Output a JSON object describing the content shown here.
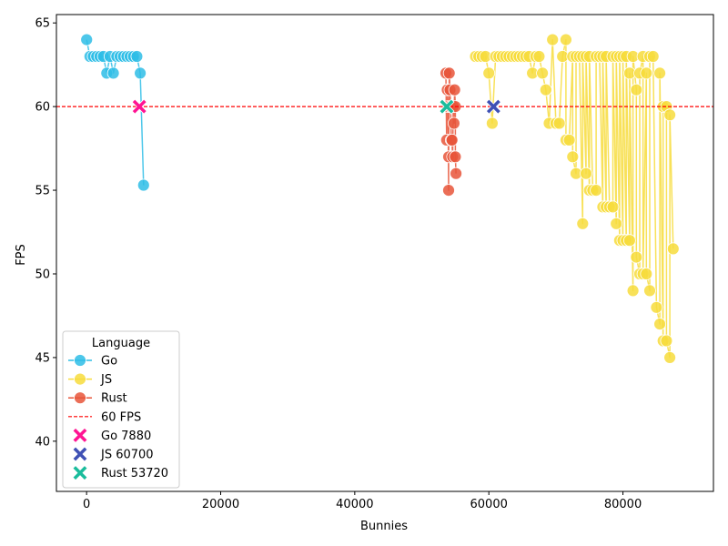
{
  "chart_data": {
    "type": "scatter",
    "xlabel": "Bunnies",
    "ylabel": "FPS",
    "xlim": [
      -4500,
      93500
    ],
    "ylim": [
      37,
      65.5
    ],
    "x_ticks": [
      0,
      20000,
      40000,
      60000,
      80000
    ],
    "y_ticks": [
      40,
      45,
      50,
      55,
      60,
      65
    ],
    "grid": false,
    "legend_title": "Language",
    "legend_position": "lower-left",
    "reference_line": {
      "y": 60,
      "label": "60 FPS",
      "color": "#ff0000"
    },
    "series": [
      {
        "name": "Go",
        "color": "#2ebde6",
        "points": [
          [
            0,
            64
          ],
          [
            500,
            63
          ],
          [
            1000,
            63
          ],
          [
            1500,
            63
          ],
          [
            2000,
            63
          ],
          [
            2500,
            63
          ],
          [
            3000,
            62
          ],
          [
            3500,
            63
          ],
          [
            4000,
            62
          ],
          [
            4500,
            63
          ],
          [
            5000,
            63
          ],
          [
            5500,
            63
          ],
          [
            6000,
            63
          ],
          [
            6500,
            63
          ],
          [
            7000,
            63
          ],
          [
            7500,
            63
          ],
          [
            8000,
            62
          ],
          [
            8500,
            55.3
          ]
        ]
      },
      {
        "name": "JS",
        "color": "#f7dc3c",
        "points": [
          [
            58000,
            63
          ],
          [
            58500,
            63
          ],
          [
            59000,
            63
          ],
          [
            59500,
            63
          ],
          [
            60000,
            62
          ],
          [
            60500,
            59
          ],
          [
            61000,
            63
          ],
          [
            61500,
            63
          ],
          [
            62000,
            63
          ],
          [
            62500,
            63
          ],
          [
            63000,
            63
          ],
          [
            63500,
            63
          ],
          [
            64000,
            63
          ],
          [
            64500,
            63
          ],
          [
            65000,
            63
          ],
          [
            65500,
            63
          ],
          [
            66000,
            63
          ],
          [
            66500,
            62
          ],
          [
            67000,
            63
          ],
          [
            67500,
            63
          ],
          [
            68000,
            62
          ],
          [
            68500,
            61
          ],
          [
            69000,
            59
          ],
          [
            69500,
            64
          ],
          [
            70000,
            59
          ],
          [
            70500,
            59
          ],
          [
            71000,
            63
          ],
          [
            71500,
            64
          ],
          [
            71500,
            58
          ],
          [
            72000,
            58
          ],
          [
            72500,
            63
          ],
          [
            72500,
            57
          ],
          [
            73000,
            56
          ],
          [
            73000,
            63
          ],
          [
            73500,
            63
          ],
          [
            74000,
            53
          ],
          [
            74000,
            63
          ],
          [
            74500,
            56
          ],
          [
            74500,
            63
          ],
          [
            75000,
            55
          ],
          [
            75000,
            63
          ],
          [
            75500,
            55
          ],
          [
            76000,
            55
          ],
          [
            76000,
            63
          ],
          [
            76500,
            63
          ],
          [
            77000,
            54
          ],
          [
            77000,
            63
          ],
          [
            77500,
            54
          ],
          [
            77500,
            63
          ],
          [
            78000,
            54
          ],
          [
            78500,
            54
          ],
          [
            78500,
            63
          ],
          [
            79000,
            53
          ],
          [
            79000,
            63
          ],
          [
            79500,
            52
          ],
          [
            79500,
            63
          ],
          [
            80000,
            52
          ],
          [
            80000,
            63
          ],
          [
            80500,
            52
          ],
          [
            80500,
            63
          ],
          [
            81000,
            52
          ],
          [
            81000,
            62
          ],
          [
            81500,
            49
          ],
          [
            81500,
            63
          ],
          [
            82000,
            61
          ],
          [
            82000,
            51
          ],
          [
            82500,
            50
          ],
          [
            82500,
            62
          ],
          [
            83000,
            63
          ],
          [
            83000,
            50
          ],
          [
            83500,
            62
          ],
          [
            83500,
            50
          ],
          [
            84000,
            49
          ],
          [
            84000,
            63
          ],
          [
            84500,
            63
          ],
          [
            85000,
            48
          ],
          [
            85500,
            47
          ],
          [
            85500,
            62
          ],
          [
            86000,
            46
          ],
          [
            86000,
            60
          ],
          [
            86500,
            60
          ],
          [
            86500,
            46
          ],
          [
            87000,
            45
          ],
          [
            87000,
            59.5
          ],
          [
            87500,
            51.5
          ]
        ]
      },
      {
        "name": "Rust",
        "color": "#e8553a",
        "points": [
          [
            53600,
            62
          ],
          [
            53700,
            58
          ],
          [
            53800,
            61
          ],
          [
            53900,
            60
          ],
          [
            54000,
            55
          ],
          [
            54000,
            57
          ],
          [
            54100,
            62
          ],
          [
            54200,
            61
          ],
          [
            54300,
            60
          ],
          [
            54400,
            58
          ],
          [
            54500,
            58
          ],
          [
            54600,
            57
          ],
          [
            54700,
            60
          ],
          [
            54800,
            59
          ],
          [
            54900,
            61
          ],
          [
            55000,
            60
          ],
          [
            55000,
            57
          ],
          [
            55100,
            56
          ]
        ]
      }
    ],
    "markers": [
      {
        "label": "Go 7880",
        "x": 7880,
        "y": 60,
        "color": "#ff1493"
      },
      {
        "label": "JS 60700",
        "x": 60700,
        "y": 60,
        "color": "#3f51b5"
      },
      {
        "label": "Rust 53720",
        "x": 53720,
        "y": 60,
        "color": "#1abc9c"
      }
    ]
  }
}
